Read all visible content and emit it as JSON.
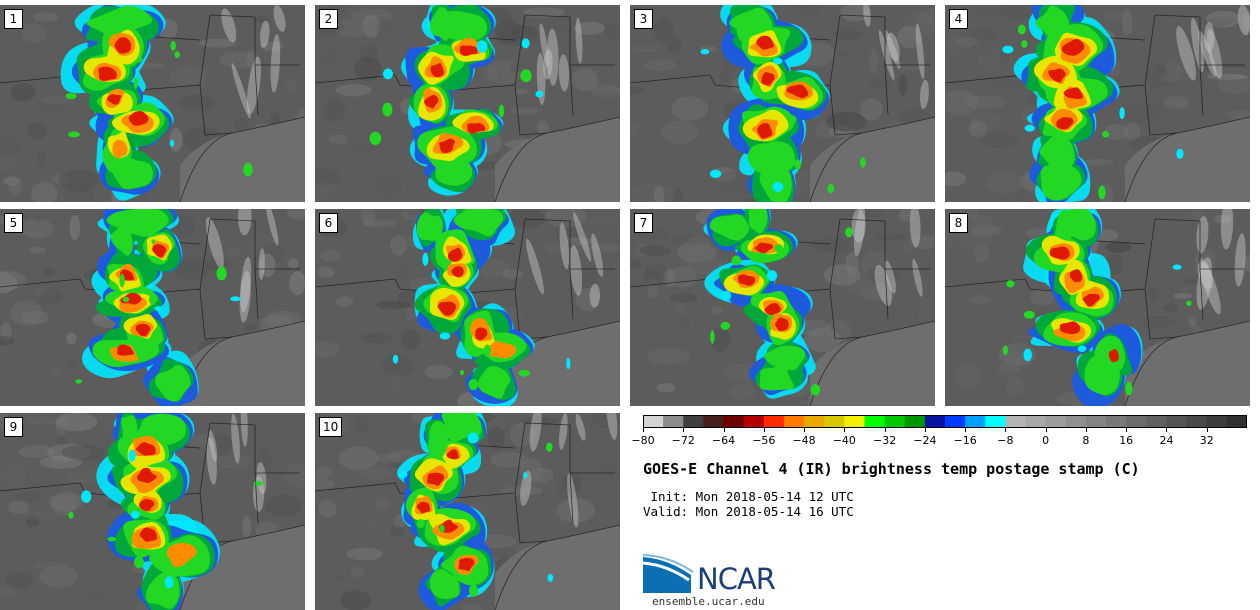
{
  "title": "GOES-E Channel 4 (IR) brightness temp postage stamp (C)",
  "init_line": " Init: Mon 2018-05-14 12 UTC",
  "valid_line": "Valid: Mon 2018-05-14 16 UTC",
  "logo_text": "NCAR",
  "site": "ensemble.ucar.edu",
  "panels": [
    "1",
    "2",
    "3",
    "4",
    "5",
    "6",
    "7",
    "8",
    "9",
    "10"
  ],
  "colorbar": {
    "min": -80,
    "max": 40,
    "step": 4,
    "tick_labels": [
      "-80",
      "-72",
      "-64",
      "-56",
      "-48",
      "-40",
      "-32",
      "-24",
      "-16",
      "-8",
      "0",
      "8",
      "16",
      "24",
      "32"
    ],
    "colors": [
      "#d3d3d3",
      "#8c8c8c",
      "#3f3f3f",
      "#4a1d1d",
      "#6e0000",
      "#b40000",
      "#ff2a00",
      "#ff7a00",
      "#e8a800",
      "#d9c800",
      "#f0f000",
      "#00ff00",
      "#00c800",
      "#009600",
      "#0a14a0",
      "#003cff",
      "#00a0ff",
      "#00ffff",
      "#b4b4b4",
      "#a8a8a8",
      "#9c9c9c",
      "#909090",
      "#848484",
      "#787878",
      "#6c6c6c",
      "#606060",
      "#545454",
      "#484848",
      "#3c3c3c",
      "#303030"
    ]
  }
}
